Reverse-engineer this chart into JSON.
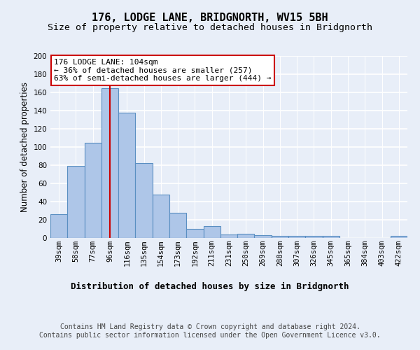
{
  "title": "176, LODGE LANE, BRIDGNORTH, WV15 5BH",
  "subtitle": "Size of property relative to detached houses in Bridgnorth",
  "xlabel": "Distribution of detached houses by size in Bridgnorth",
  "ylabel": "Number of detached properties",
  "categories": [
    "39sqm",
    "58sqm",
    "77sqm",
    "96sqm",
    "116sqm",
    "135sqm",
    "154sqm",
    "173sqm",
    "192sqm",
    "211sqm",
    "231sqm",
    "250sqm",
    "269sqm",
    "288sqm",
    "307sqm",
    "326sqm",
    "345sqm",
    "365sqm",
    "384sqm",
    "403sqm",
    "422sqm"
  ],
  "values": [
    26,
    79,
    105,
    165,
    138,
    82,
    48,
    28,
    10,
    13,
    4,
    5,
    3,
    2,
    2,
    2,
    2,
    0,
    0,
    0,
    2
  ],
  "bar_color": "#aec6e8",
  "bar_edge_color": "#5a8fc2",
  "bar_edge_width": 0.8,
  "red_line_index": 3,
  "annotation_text": "176 LODGE LANE: 104sqm\n← 36% of detached houses are smaller (257)\n63% of semi-detached houses are larger (444) →",
  "annotation_box_color": "#ffffff",
  "annotation_box_edge_color": "#cc0000",
  "red_line_color": "#cc0000",
  "ylim": [
    0,
    200
  ],
  "yticks": [
    0,
    20,
    40,
    60,
    80,
    100,
    120,
    140,
    160,
    180,
    200
  ],
  "bg_color": "#e8eef8",
  "plot_bg_color": "#e8eef8",
  "grid_color": "#ffffff",
  "footer_text": "Contains HM Land Registry data © Crown copyright and database right 2024.\nContains public sector information licensed under the Open Government Licence v3.0.",
  "title_fontsize": 11,
  "subtitle_fontsize": 9.5,
  "xlabel_fontsize": 9,
  "ylabel_fontsize": 8.5,
  "tick_fontsize": 7.5,
  "annotation_fontsize": 8,
  "footer_fontsize": 7
}
